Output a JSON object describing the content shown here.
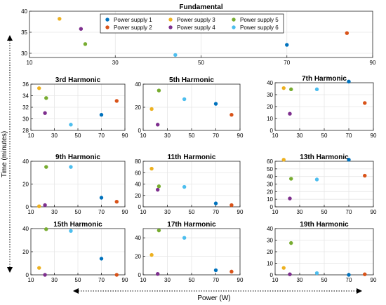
{
  "figure": {
    "ylabel": "Time (minutes)",
    "xlabel": "Power (W)"
  },
  "legend": {
    "placement": "top-center",
    "entries": [
      {
        "name": "Power supply 1",
        "color": "#0072BD"
      },
      {
        "name": "Power supply 2",
        "color": "#D95319"
      },
      {
        "name": "Power supply 3",
        "color": "#EDB120"
      },
      {
        "name": "Power supply 4",
        "color": "#7E2F8E"
      },
      {
        "name": "Power supply 5",
        "color": "#77AC30"
      },
      {
        "name": "Power supply 6",
        "color": "#4DBEEE"
      }
    ]
  },
  "chart_data": [
    {
      "type": "scatter",
      "title": "Fundamental",
      "xlim": [
        10,
        90
      ],
      "ylim": [
        29,
        40
      ],
      "xticks": [
        10,
        30,
        50,
        70,
        90
      ],
      "yticks": [
        30,
        35,
        40
      ],
      "grid": true,
      "series": [
        {
          "name": "Power supply 1",
          "x": [
            70
          ],
          "y": [
            32
          ]
        },
        {
          "name": "Power supply 2",
          "x": [
            84
          ],
          "y": [
            34.8
          ]
        },
        {
          "name": "Power supply 3",
          "x": [
            17
          ],
          "y": [
            38.2
          ]
        },
        {
          "name": "Power supply 4",
          "x": [
            22
          ],
          "y": [
            35.8
          ]
        },
        {
          "name": "Power supply 5",
          "x": [
            23
          ],
          "y": [
            32.2
          ]
        },
        {
          "name": "Power supply 6",
          "x": [
            44
          ],
          "y": [
            29.6
          ]
        }
      ]
    },
    {
      "type": "scatter",
      "title": "3rd Harmonic",
      "xlim": [
        10,
        90
      ],
      "ylim": [
        28,
        36
      ],
      "xticks": [
        10,
        30,
        50,
        70,
        90
      ],
      "yticks": [
        28,
        30,
        32,
        34,
        36
      ],
      "grid": true,
      "series": [
        {
          "name": "Power supply 1",
          "x": [
            70
          ],
          "y": [
            30.7
          ]
        },
        {
          "name": "Power supply 2",
          "x": [
            83
          ],
          "y": [
            33.1
          ]
        },
        {
          "name": "Power supply 3",
          "x": [
            17
          ],
          "y": [
            35.3
          ]
        },
        {
          "name": "Power supply 4",
          "x": [
            22
          ],
          "y": [
            31
          ]
        },
        {
          "name": "Power supply 5",
          "x": [
            23
          ],
          "y": [
            33.6
          ]
        },
        {
          "name": "Power supply 6",
          "x": [
            44
          ],
          "y": [
            29
          ]
        }
      ]
    },
    {
      "type": "scatter",
      "title": "5th Harmonic",
      "xlim": [
        10,
        90
      ],
      "ylim": [
        0,
        40
      ],
      "xticks": [
        10,
        30,
        50,
        70,
        90
      ],
      "yticks": [
        0,
        20,
        40
      ],
      "grid": true,
      "series": [
        {
          "name": "Power supply 1",
          "x": [
            70
          ],
          "y": [
            23
          ]
        },
        {
          "name": "Power supply 2",
          "x": [
            83
          ],
          "y": [
            13.5
          ]
        },
        {
          "name": "Power supply 3",
          "x": [
            17
          ],
          "y": [
            18.5
          ]
        },
        {
          "name": "Power supply 4",
          "x": [
            22
          ],
          "y": [
            5
          ]
        },
        {
          "name": "Power supply 5",
          "x": [
            23
          ],
          "y": [
            34.5
          ]
        },
        {
          "name": "Power supply 6",
          "x": [
            44
          ],
          "y": [
            27
          ]
        }
      ]
    },
    {
      "type": "scatter",
      "title": "7th Harmonic",
      "xlim": [
        10,
        90
      ],
      "ylim": [
        0,
        40
      ],
      "xticks": [
        10,
        30,
        50,
        70,
        90
      ],
      "yticks": [
        0,
        10,
        20,
        30,
        40
      ],
      "grid": true,
      "series": [
        {
          "name": "Power supply 1",
          "x": [
            70
          ],
          "y": [
            41
          ]
        },
        {
          "name": "Power supply 2",
          "x": [
            83
          ],
          "y": [
            23
          ]
        },
        {
          "name": "Power supply 3",
          "x": [
            17
          ],
          "y": [
            35.5
          ]
        },
        {
          "name": "Power supply 4",
          "x": [
            22
          ],
          "y": [
            14
          ]
        },
        {
          "name": "Power supply 5",
          "x": [
            23
          ],
          "y": [
            34.5
          ]
        },
        {
          "name": "Power supply 6",
          "x": [
            44
          ],
          "y": [
            34.5
          ]
        }
      ]
    },
    {
      "type": "scatter",
      "title": "9th Harmonic",
      "xlim": [
        10,
        90
      ],
      "ylim": [
        0,
        40
      ],
      "xticks": [
        10,
        30,
        50,
        70,
        90
      ],
      "yticks": [
        0,
        20,
        40
      ],
      "grid": true,
      "series": [
        {
          "name": "Power supply 1",
          "x": [
            70
          ],
          "y": [
            8
          ]
        },
        {
          "name": "Power supply 2",
          "x": [
            83
          ],
          "y": [
            4.5
          ]
        },
        {
          "name": "Power supply 3",
          "x": [
            17
          ],
          "y": [
            0.5
          ]
        },
        {
          "name": "Power supply 4",
          "x": [
            22
          ],
          "y": [
            1.5
          ]
        },
        {
          "name": "Power supply 5",
          "x": [
            23
          ],
          "y": [
            35
          ]
        },
        {
          "name": "Power supply 6",
          "x": [
            44
          ],
          "y": [
            35
          ]
        }
      ]
    },
    {
      "type": "scatter",
      "title": "11th Harmonic",
      "xlim": [
        10,
        90
      ],
      "ylim": [
        0,
        80
      ],
      "xticks": [
        10,
        30,
        50,
        70,
        90
      ],
      "yticks": [
        0,
        20,
        40,
        60,
        80
      ],
      "grid": true,
      "series": [
        {
          "name": "Power supply 1",
          "x": [
            70
          ],
          "y": [
            6
          ]
        },
        {
          "name": "Power supply 2",
          "x": [
            83
          ],
          "y": [
            3
          ]
        },
        {
          "name": "Power supply 3",
          "x": [
            17
          ],
          "y": [
            67
          ]
        },
        {
          "name": "Power supply 4",
          "x": [
            22
          ],
          "y": [
            30
          ]
        },
        {
          "name": "Power supply 5",
          "x": [
            23
          ],
          "y": [
            36
          ]
        },
        {
          "name": "Power supply 6",
          "x": [
            44
          ],
          "y": [
            35
          ]
        }
      ]
    },
    {
      "type": "scatter",
      "title": "13th Harmonic",
      "xlim": [
        10,
        90
      ],
      "ylim": [
        0,
        60
      ],
      "xticks": [
        10,
        30,
        50,
        70,
        90
      ],
      "yticks": [
        0,
        10,
        20,
        30,
        40,
        50,
        60
      ],
      "grid": true,
      "series": [
        {
          "name": "Power supply 1",
          "x": [
            70
          ],
          "y": [
            62
          ]
        },
        {
          "name": "Power supply 2",
          "x": [
            83
          ],
          "y": [
            41
          ]
        },
        {
          "name": "Power supply 3",
          "x": [
            17
          ],
          "y": [
            62
          ]
        },
        {
          "name": "Power supply 4",
          "x": [
            22
          ],
          "y": [
            11
          ]
        },
        {
          "name": "Power supply 5",
          "x": [
            23
          ],
          "y": [
            37
          ]
        },
        {
          "name": "Power supply 6",
          "x": [
            44
          ],
          "y": [
            36
          ]
        }
      ]
    },
    {
      "type": "scatter",
      "title": "15th Harmonic",
      "xlim": [
        10,
        90
      ],
      "ylim": [
        0,
        40
      ],
      "xticks": [
        10,
        30,
        50,
        70,
        90
      ],
      "yticks": [
        0,
        20,
        40
      ],
      "grid": true,
      "series": [
        {
          "name": "Power supply 1",
          "x": [
            70
          ],
          "y": [
            14
          ]
        },
        {
          "name": "Power supply 2",
          "x": [
            83
          ],
          "y": [
            0
          ]
        },
        {
          "name": "Power supply 3",
          "x": [
            17
          ],
          "y": [
            6
          ]
        },
        {
          "name": "Power supply 4",
          "x": [
            22
          ],
          "y": [
            0
          ]
        },
        {
          "name": "Power supply 5",
          "x": [
            23
          ],
          "y": [
            39.5
          ]
        },
        {
          "name": "Power supply 6",
          "x": [
            44
          ],
          "y": [
            38
          ]
        }
      ]
    },
    {
      "type": "scatter",
      "title": "17th Harmonic",
      "xlim": [
        10,
        90
      ],
      "ylim": [
        0,
        50
      ],
      "xticks": [
        10,
        30,
        50,
        70,
        90
      ],
      "yticks": [
        0,
        20,
        40
      ],
      "grid": true,
      "series": [
        {
          "name": "Power supply 1",
          "x": [
            70
          ],
          "y": [
            5
          ]
        },
        {
          "name": "Power supply 2",
          "x": [
            83
          ],
          "y": [
            3.5
          ]
        },
        {
          "name": "Power supply 3",
          "x": [
            17
          ],
          "y": [
            21.5
          ]
        },
        {
          "name": "Power supply 4",
          "x": [
            22
          ],
          "y": [
            1
          ]
        },
        {
          "name": "Power supply 5",
          "x": [
            23
          ],
          "y": [
            48
          ]
        },
        {
          "name": "Power supply 6",
          "x": [
            44
          ],
          "y": [
            40
          ]
        }
      ]
    },
    {
      "type": "scatter",
      "title": "19th Harmonic",
      "xlim": [
        10,
        90
      ],
      "ylim": [
        0,
        40
      ],
      "xticks": [
        10,
        30,
        50,
        70,
        90
      ],
      "yticks": [
        0,
        10,
        20,
        30,
        40
      ],
      "grid": true,
      "series": [
        {
          "name": "Power supply 1",
          "x": [
            70
          ],
          "y": [
            0
          ]
        },
        {
          "name": "Power supply 2",
          "x": [
            83
          ],
          "y": [
            0.5
          ]
        },
        {
          "name": "Power supply 3",
          "x": [
            17
          ],
          "y": [
            6
          ]
        },
        {
          "name": "Power supply 4",
          "x": [
            22
          ],
          "y": [
            0.5
          ]
        },
        {
          "name": "Power supply 5",
          "x": [
            23
          ],
          "y": [
            27.5
          ]
        },
        {
          "name": "Power supply 6",
          "x": [
            44
          ],
          "y": [
            1.5
          ]
        }
      ]
    }
  ]
}
